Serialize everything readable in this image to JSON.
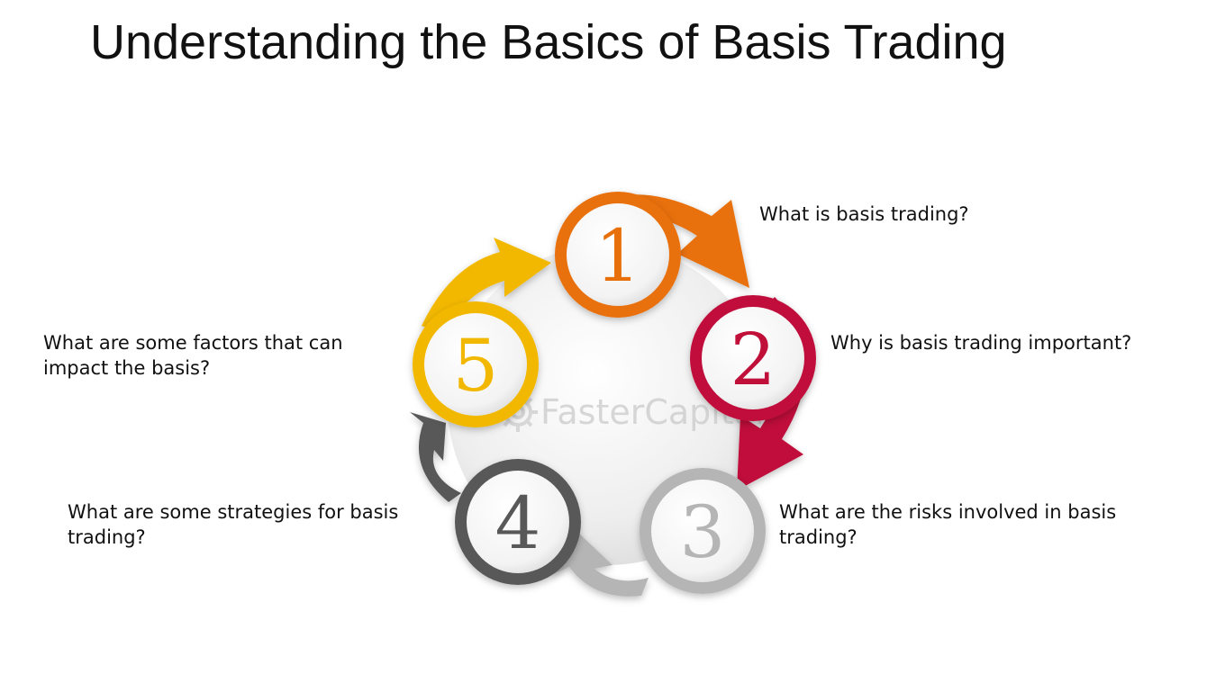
{
  "title": "Understanding the Basics of Basis Trading",
  "watermark": "FasterCapital",
  "steps": [
    {
      "number": "1",
      "question": "What is basis trading?",
      "color": "#E8700A"
    },
    {
      "number": "2",
      "question": "Why is basis trading important?",
      "color": "#C0103A"
    },
    {
      "number": "3",
      "question": "What are the risks involved in basis trading?",
      "color": "#B5B5B5"
    },
    {
      "number": "4",
      "question": "What are some strategies for basis trading?",
      "color": "#585858"
    },
    {
      "number": "5",
      "question": "What are some factors that can impact the basis?",
      "color": "#F2B800"
    }
  ]
}
